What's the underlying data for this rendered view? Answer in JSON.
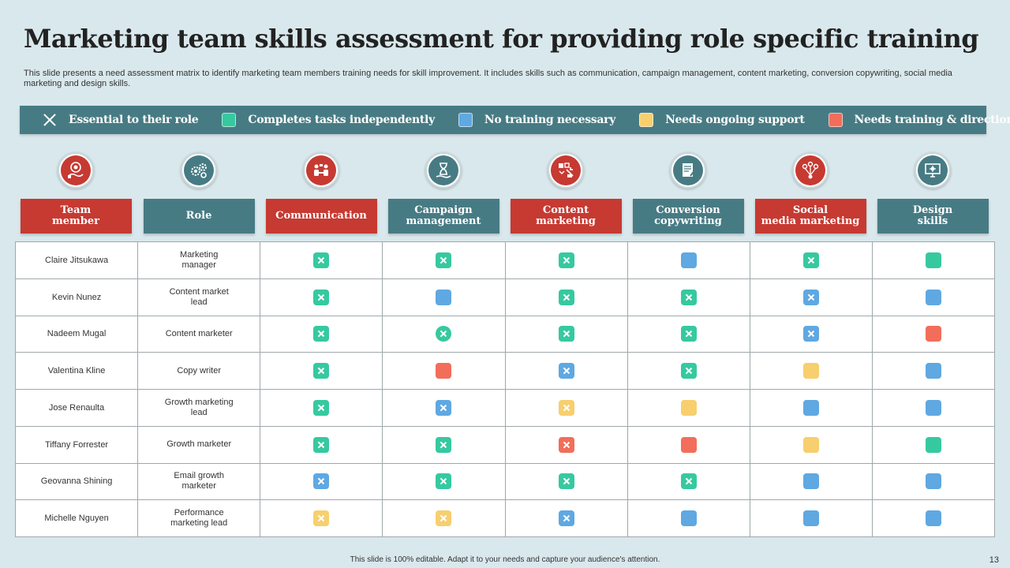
{
  "title": "Marketing team skills assessment for providing role specific training",
  "subtitle": "This slide presents a need assessment matrix to identify marketing team members training needs for skill improvement. It includes skills such as communication, campaign management, content marketing, conversion copywriting, social media marketing and design skills.",
  "colors": {
    "green": "#36c9a0",
    "blue": "#5fa8e2",
    "yellow": "#f7cf6e",
    "red": "#f26e5a",
    "teal": "#477b84",
    "header_red": "#c63a32",
    "header_teal": "#477b84"
  },
  "legend": [
    {
      "label": "Essential to their role",
      "icon": "x-mark-icon"
    },
    {
      "label": "Completes tasks independently",
      "color": "green"
    },
    {
      "label": "No training necessary",
      "color": "blue"
    },
    {
      "label": "Needs ongoing support",
      "color": "yellow"
    },
    {
      "label": "Needs training & direction",
      "color": "red"
    }
  ],
  "columns": [
    {
      "label": "Team member",
      "icon": "team-member-icon",
      "theme": "red"
    },
    {
      "label": "Role",
      "icon": "role-gears-icon",
      "theme": "teal"
    },
    {
      "label": "Communication",
      "icon": "communication-icon",
      "theme": "red"
    },
    {
      "label": "Campaign management",
      "icon": "campaign-hourglass-icon",
      "theme": "teal"
    },
    {
      "label": "Content marketing",
      "icon": "content-marketing-icon",
      "theme": "red"
    },
    {
      "label": "Conversion copywriting",
      "icon": "copywriting-icon",
      "theme": "teal"
    },
    {
      "label": "Social media marketing",
      "icon": "social-network-icon",
      "theme": "red"
    },
    {
      "label": "Design skills",
      "icon": "design-monitor-icon",
      "theme": "teal"
    }
  ],
  "rows": [
    {
      "member": "Claire Jitsukawa",
      "role": "Marketing manager",
      "skills": [
        {
          "color": "green",
          "x": true
        },
        {
          "color": "green",
          "x": true
        },
        {
          "color": "green",
          "x": true
        },
        {
          "color": "blue",
          "x": false
        },
        {
          "color": "green",
          "x": true
        },
        {
          "color": "green",
          "x": false
        }
      ]
    },
    {
      "member": "Kevin Nunez",
      "role": "Content market lead",
      "skills": [
        {
          "color": "green",
          "x": true
        },
        {
          "color": "blue",
          "x": false
        },
        {
          "color": "green",
          "x": true
        },
        {
          "color": "green",
          "x": true
        },
        {
          "color": "blue",
          "x": true
        },
        {
          "color": "blue",
          "x": false
        }
      ]
    },
    {
      "member": "Nadeem Mugal",
      "role": "Content marketer",
      "skills": [
        {
          "color": "green",
          "x": true
        },
        {
          "color": "green",
          "x": true,
          "round": true
        },
        {
          "color": "green",
          "x": true
        },
        {
          "color": "green",
          "x": true
        },
        {
          "color": "blue",
          "x": true
        },
        {
          "color": "red",
          "x": false
        }
      ]
    },
    {
      "member": "Valentina Kline",
      "role": "Copy writer",
      "skills": [
        {
          "color": "green",
          "x": true
        },
        {
          "color": "red",
          "x": false
        },
        {
          "color": "blue",
          "x": true
        },
        {
          "color": "green",
          "x": true
        },
        {
          "color": "yellow",
          "x": false
        },
        {
          "color": "blue",
          "x": false
        }
      ]
    },
    {
      "member": "Jose Renaulta",
      "role": "Growth marketing lead",
      "skills": [
        {
          "color": "green",
          "x": true
        },
        {
          "color": "blue",
          "x": true
        },
        {
          "color": "yellow",
          "x": true
        },
        {
          "color": "yellow",
          "x": false
        },
        {
          "color": "blue",
          "x": false
        },
        {
          "color": "blue",
          "x": false
        }
      ]
    },
    {
      "member": "Tiffany Forrester",
      "role": "Growth marketer",
      "skills": [
        {
          "color": "green",
          "x": true
        },
        {
          "color": "green",
          "x": true
        },
        {
          "color": "red",
          "x": true
        },
        {
          "color": "red",
          "x": false
        },
        {
          "color": "yellow",
          "x": false
        },
        {
          "color": "green",
          "x": false
        }
      ]
    },
    {
      "member": "Geovanna Shining",
      "role": "Email  growth marketer",
      "skills": [
        {
          "color": "blue",
          "x": true
        },
        {
          "color": "green",
          "x": true
        },
        {
          "color": "green",
          "x": true
        },
        {
          "color": "green",
          "x": true
        },
        {
          "color": "blue",
          "x": false
        },
        {
          "color": "blue",
          "x": false
        }
      ]
    },
    {
      "member": "Michelle Nguyen",
      "role": "Performance marketing lead",
      "skills": [
        {
          "color": "yellow",
          "x": true
        },
        {
          "color": "yellow",
          "x": true
        },
        {
          "color": "blue",
          "x": true
        },
        {
          "color": "blue",
          "x": false
        },
        {
          "color": "blue",
          "x": false
        },
        {
          "color": "blue",
          "x": false
        }
      ]
    }
  ],
  "footer": "This slide is 100% editable.  Adapt it to your needs and capture your audience's attention.",
  "page_number": "13"
}
